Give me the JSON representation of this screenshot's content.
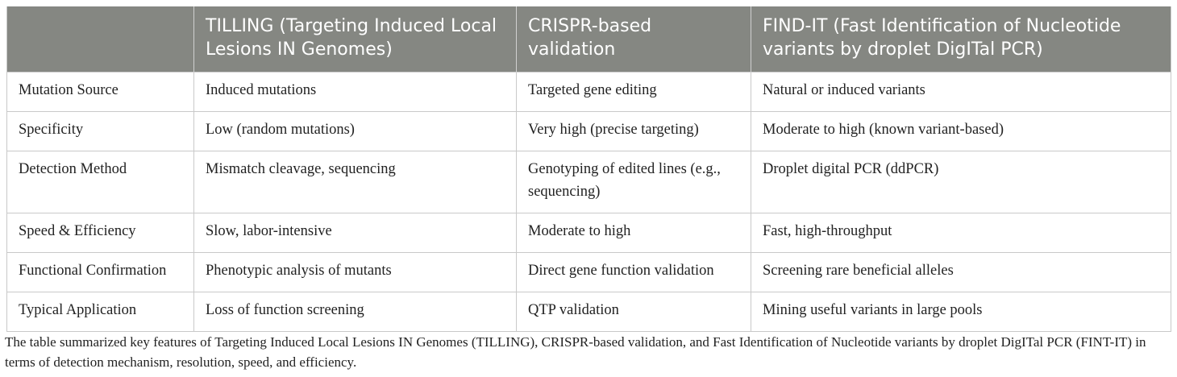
{
  "table": {
    "headers": [
      "",
      "TILLING (Targeting Induced Local Lesions IN Genomes)",
      "CRISPR-based validation",
      "FIND-IT (Fast Identification of Nucleotide variants by droplet DigITal PCR)"
    ],
    "rows": [
      [
        "Mutation Source",
        "Induced mutations",
        "Targeted gene editing",
        "Natural or induced variants"
      ],
      [
        "Specificity",
        "Low (random mutations)",
        "Very high (precise targeting)",
        "Moderate to high (known variant-based)"
      ],
      [
        "Detection Method",
        "Mismatch cleavage, sequencing",
        "Genotyping of edited lines (e.g., sequencing)",
        "Droplet digital PCR (ddPCR)"
      ],
      [
        "Speed & Efficiency",
        "Slow, labor-intensive",
        "Moderate to high",
        "Fast, high-throughput"
      ],
      [
        "Functional Confirmation",
        "Phenotypic analysis of mutants",
        "Direct gene function validation",
        "Screening rare beneficial alleles"
      ],
      [
        "Typical Application",
        "Loss of function screening",
        "QTP validation",
        "Mining useful variants in large pools"
      ]
    ]
  },
  "caption": "The table summarized key features of Targeting Induced Local Lesions IN Genomes (TILLING), CRISPR-based validation, and Fast Identification of Nucleotide variants by droplet DigITal PCR (FINT-IT) in terms of detection mechanism, resolution, speed, and efficiency.",
  "colors": {
    "header_bg": "#858782",
    "header_text": "#ffffff",
    "border": "#c9c9c9",
    "body_text": "#222222"
  }
}
